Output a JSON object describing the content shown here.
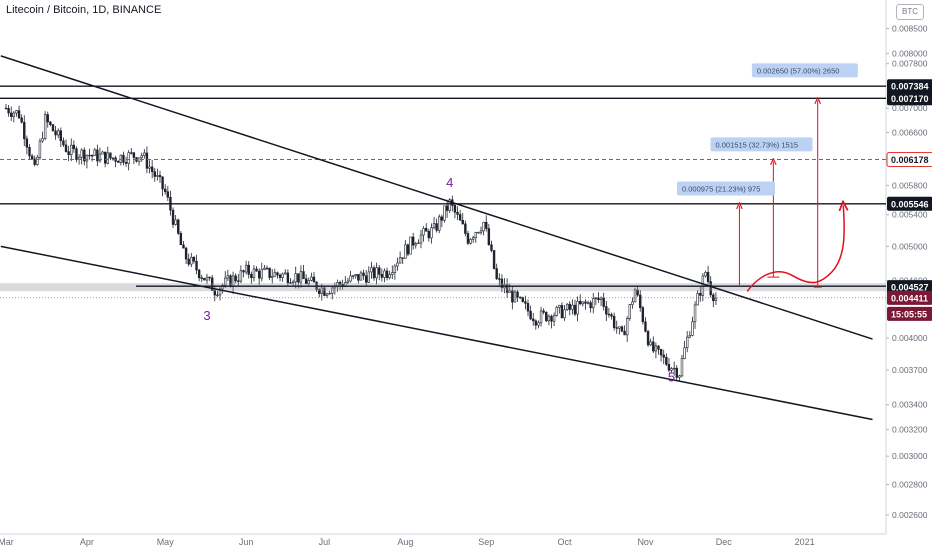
{
  "header": {
    "title": "Litecoin / Bitcoin, 1D, BINANCE",
    "currency_button": "BTC"
  },
  "chart_data": {
    "type": "candlestick",
    "title": "Litecoin / Bitcoin, 1D, BINANCE",
    "ylim": [
      0.00245,
      0.0088
    ],
    "y_ticks": [
      "0.002600",
      "0.002800",
      "0.003000",
      "0.003200",
      "0.003400",
      "0.003700",
      "0.004000",
      "0.004600",
      "0.005000",
      "0.005400",
      "0.005800",
      "0.006200",
      "0.006600",
      "0.007000",
      "0.007400",
      "0.007800",
      "0.008000",
      "0.008500"
    ],
    "x_ticks": [
      "Mar",
      "Apr",
      "May",
      "Jun",
      "Jul",
      "Aug",
      "Sep",
      "Oct",
      "Nov",
      "Dec",
      "2021"
    ],
    "price_keypoints": [
      {
        "date": "2020-03-01",
        "price": 0.007
      },
      {
        "date": "2020-03-06",
        "price": 0.0069
      },
      {
        "date": "2020-03-12",
        "price": 0.006
      },
      {
        "date": "2020-03-16",
        "price": 0.0068
      },
      {
        "date": "2020-03-25",
        "price": 0.0063
      },
      {
        "date": "2020-04-10",
        "price": 0.0062
      },
      {
        "date": "2020-04-22",
        "price": 0.00625
      },
      {
        "date": "2020-05-01",
        "price": 0.0057
      },
      {
        "date": "2020-05-08",
        "price": 0.0049
      },
      {
        "date": "2020-05-20",
        "price": 0.0045
      },
      {
        "date": "2020-06-01",
        "price": 0.0047
      },
      {
        "date": "2020-06-20",
        "price": 0.00465
      },
      {
        "date": "2020-07-01",
        "price": 0.0045
      },
      {
        "date": "2020-07-15",
        "price": 0.00465
      },
      {
        "date": "2020-07-25",
        "price": 0.0047
      },
      {
        "date": "2020-08-05",
        "price": 0.0051
      },
      {
        "date": "2020-08-12",
        "price": 0.0052
      },
      {
        "date": "2020-08-18",
        "price": 0.00555
      },
      {
        "date": "2020-08-25",
        "price": 0.0051
      },
      {
        "date": "2020-08-31",
        "price": 0.0053
      },
      {
        "date": "2020-09-05",
        "price": 0.0046
      },
      {
        "date": "2020-09-12",
        "price": 0.0044
      },
      {
        "date": "2020-09-20",
        "price": 0.0042
      },
      {
        "date": "2020-10-05",
        "price": 0.0043
      },
      {
        "date": "2020-10-15",
        "price": 0.0044
      },
      {
        "date": "2020-10-23",
        "price": 0.004
      },
      {
        "date": "2020-10-28",
        "price": 0.0045
      },
      {
        "date": "2020-11-03",
        "price": 0.0039
      },
      {
        "date": "2020-11-10",
        "price": 0.00375
      },
      {
        "date": "2020-11-14",
        "price": 0.00368
      },
      {
        "date": "2020-11-20",
        "price": 0.0043
      },
      {
        "date": "2020-11-24",
        "price": 0.0047
      },
      {
        "date": "2020-11-26",
        "price": 0.0045
      },
      {
        "date": "2020-11-28",
        "price": 0.00441
      }
    ],
    "price_labels": [
      {
        "text": "0.007384",
        "price": 0.007384,
        "style": "black"
      },
      {
        "text": "0.007170",
        "price": 0.00717,
        "style": "black"
      },
      {
        "text": "0.006178",
        "price": 0.006178,
        "style": "red"
      },
      {
        "text": "0.005546",
        "price": 0.005546,
        "style": "black"
      },
      {
        "text": "0.004527",
        "price": 0.004527,
        "style": "black"
      },
      {
        "text": "0.004411",
        "price": 0.004411,
        "style": "maroon"
      },
      {
        "text": "15:05:55",
        "price": 0.00415,
        "style": "maroon"
      }
    ],
    "horizontal_levels": [
      {
        "price": 0.007384,
        "style": "solid"
      },
      {
        "price": 0.00717,
        "style": "solid"
      },
      {
        "price": 0.006178,
        "style": "dashed-red"
      },
      {
        "price": 0.005546,
        "style": "solid"
      },
      {
        "price": 0.004527,
        "style": "zone"
      },
      {
        "price": 0.004411,
        "style": "dotted"
      }
    ],
    "trendlines": [
      {
        "from": {
          "date": "2020-02-28",
          "price": 0.00795
        },
        "to": {
          "date": "2021-01-27",
          "price": 0.00399
        }
      },
      {
        "from": {
          "date": "2020-02-28",
          "price": 0.005
        },
        "to": {
          "date": "2021-01-27",
          "price": 0.00328
        }
      }
    ],
    "wave_labels": [
      {
        "text": "3",
        "date": "2020-05-17",
        "price": 0.00418
      },
      {
        "text": "4",
        "date": "2020-08-18",
        "price": 0.00578
      },
      {
        "text": "5",
        "date": "2020-11-11",
        "price": 0.0036
      }
    ],
    "target_annotations": [
      {
        "text": "0.000975 (21.23%) 975",
        "date": "2020-12-07",
        "price": 0.00555
      },
      {
        "text": "0.001515 (32.73%) 1515",
        "date": "2020-12-20",
        "price": 0.00618
      },
      {
        "text": "0.002650 (57.00%) 2650",
        "date": "2021-01-06",
        "price": 0.0074
      }
    ]
  }
}
